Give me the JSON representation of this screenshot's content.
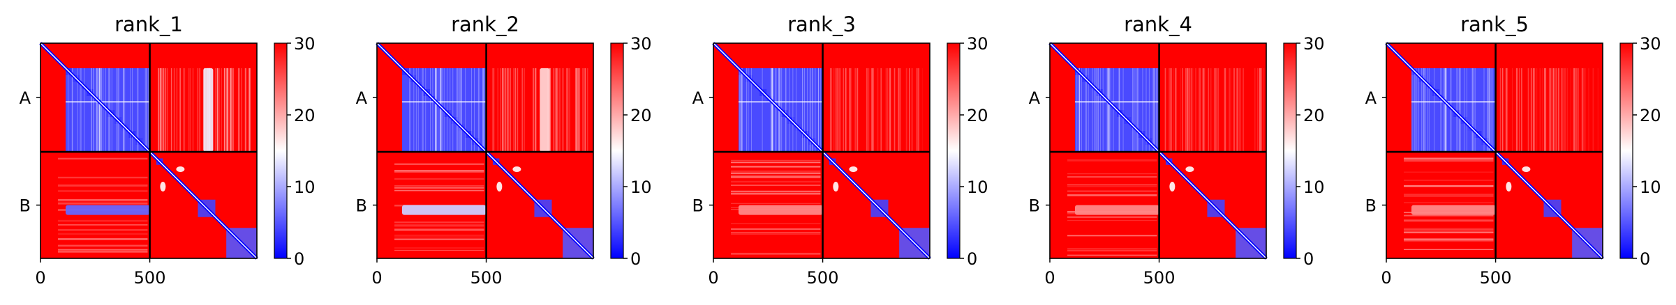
{
  "chart_data": [
    {
      "type": "heatmap",
      "title": "rank_1",
      "chains": [
        "A",
        "B"
      ],
      "x_ticks": [
        0,
        500
      ],
      "colorbar": {
        "min": 0,
        "max": 30,
        "ticks": [
          0,
          10,
          20,
          30
        ],
        "colors": [
          "#0000ff",
          "#ffffff",
          "#ff0000"
        ]
      },
      "boundary": 500,
      "total_length": 990,
      "cross_blocks": "strong",
      "B_subdomains": [
        [
          530,
          560
        ],
        [
          720,
          800
        ],
        [
          850,
          990
        ]
      ]
    },
    {
      "type": "heatmap",
      "title": "rank_2",
      "chains": [
        "A",
        "B"
      ],
      "x_ticks": [
        0,
        500
      ],
      "colorbar": {
        "min": 0,
        "max": 30,
        "ticks": [
          0,
          10,
          20,
          30
        ],
        "colors": [
          "#0000ff",
          "#ffffff",
          "#ff0000"
        ]
      },
      "boundary": 500,
      "total_length": 990,
      "cross_blocks": "medium",
      "B_subdomains": [
        [
          530,
          560
        ],
        [
          720,
          800
        ],
        [
          850,
          990
        ]
      ]
    },
    {
      "type": "heatmap",
      "title": "rank_3",
      "chains": [
        "A",
        "B"
      ],
      "x_ticks": [
        0,
        500
      ],
      "colorbar": {
        "min": 0,
        "max": 30,
        "ticks": [
          0,
          10,
          20,
          30
        ],
        "colors": [
          "#0000ff",
          "#ffffff",
          "#ff0000"
        ]
      },
      "boundary": 500,
      "total_length": 990,
      "cross_blocks": "weak",
      "B_subdomains": [
        [
          530,
          560
        ],
        [
          720,
          800
        ],
        [
          850,
          990
        ]
      ]
    },
    {
      "type": "heatmap",
      "title": "rank_4",
      "chains": [
        "A",
        "B"
      ],
      "x_ticks": [
        0,
        500
      ],
      "colorbar": {
        "min": 0,
        "max": 30,
        "ticks": [
          0,
          10,
          20,
          30
        ],
        "colors": [
          "#0000ff",
          "#ffffff",
          "#ff0000"
        ]
      },
      "boundary": 500,
      "total_length": 990,
      "cross_blocks": "weak",
      "B_subdomains": [
        [
          530,
          560
        ],
        [
          720,
          800
        ],
        [
          850,
          990
        ]
      ]
    },
    {
      "type": "heatmap",
      "title": "rank_5",
      "chains": [
        "A",
        "B"
      ],
      "x_ticks": [
        0,
        500
      ],
      "colorbar": {
        "min": 0,
        "max": 30,
        "ticks": [
          0,
          10,
          20,
          30
        ],
        "colors": [
          "#0000ff",
          "#ffffff",
          "#ff0000"
        ]
      },
      "boundary": 500,
      "total_length": 990,
      "cross_blocks": "weak",
      "B_subdomains": [
        [
          530,
          560
        ],
        [
          720,
          800
        ],
        [
          850,
          990
        ]
      ]
    }
  ]
}
